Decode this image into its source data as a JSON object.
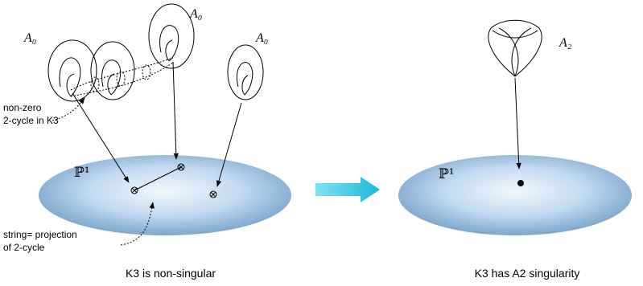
{
  "left_panel": {
    "caption": "K3 is non-singular",
    "base_label": "ℙ¹",
    "fiber_labels": [
      "A₀",
      "A₀",
      "A₀"
    ],
    "cycle_note": [
      "non-zero",
      "2-cycle in K3"
    ],
    "string_note": [
      "string= projection",
      "of 2-cycle"
    ]
  },
  "right_panel": {
    "caption": "K3 has A2 singularity",
    "base_label": "ℙ¹",
    "fiber_label": "A₂"
  }
}
